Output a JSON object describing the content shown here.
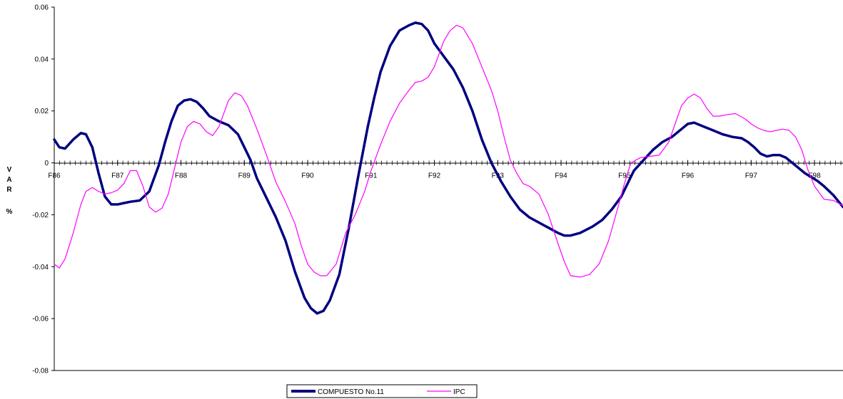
{
  "chart_data": {
    "type": "line",
    "title": "",
    "xlabel": "",
    "ylabel": [
      "V",
      "A",
      "R",
      "",
      "%"
    ],
    "ylim": [
      -0.08,
      0.06
    ],
    "yticks": [
      {
        "value": 0.06,
        "label": "0.06"
      },
      {
        "value": 0.04,
        "label": "0.04"
      },
      {
        "value": 0.02,
        "label": "0.02"
      },
      {
        "value": 0,
        "label": "0"
      },
      {
        "value": -0.02,
        "label": "-0.02"
      },
      {
        "value": -0.04,
        "label": "-0.04"
      },
      {
        "value": -0.06,
        "label": "-0.06"
      },
      {
        "value": -0.08,
        "label": "-0.08"
      }
    ],
    "xlim": [
      1986.0,
      1998.45
    ],
    "xticks": [
      {
        "value": 1986,
        "label": "F86"
      },
      {
        "value": 1987,
        "label": "F87"
      },
      {
        "value": 1988,
        "label": "F88"
      },
      {
        "value": 1989,
        "label": "F89"
      },
      {
        "value": 1990,
        "label": "F90"
      },
      {
        "value": 1991,
        "label": "F91"
      },
      {
        "value": 1992,
        "label": "F92"
      },
      {
        "value": 1993,
        "label": "F93"
      },
      {
        "value": 1994,
        "label": "F94"
      },
      {
        "value": 1995,
        "label": "F95"
      },
      {
        "value": 1996,
        "label": "F96"
      },
      {
        "value": 1997,
        "label": "F97"
      },
      {
        "value": 1998,
        "label": "F98"
      }
    ],
    "grid": false,
    "legend": "bottom-center",
    "series": [
      {
        "name": "COMPUESTO No.11",
        "color": "#000080",
        "width": 3.5,
        "x": [
          1986.0,
          1986.08,
          1986.17,
          1986.3,
          1986.42,
          1986.5,
          1986.6,
          1986.7,
          1986.8,
          1986.9,
          1987.0,
          1987.1,
          1987.2,
          1987.35,
          1987.5,
          1987.65,
          1987.75,
          1987.85,
          1987.95,
          1988.05,
          1988.15,
          1988.25,
          1988.35,
          1988.45,
          1988.6,
          1988.75,
          1988.9,
          1989.0,
          1989.1,
          1989.2,
          1989.35,
          1989.5,
          1989.65,
          1989.8,
          1989.95,
          1990.05,
          1990.15,
          1990.25,
          1990.35,
          1990.5,
          1990.65,
          1990.8,
          1990.95,
          1991.05,
          1991.15,
          1991.3,
          1991.45,
          1991.6,
          1991.7,
          1991.8,
          1991.9,
          1992.0,
          1992.15,
          1992.3,
          1992.45,
          1992.6,
          1992.75,
          1992.9,
          1993.05,
          1993.2,
          1993.35,
          1993.5,
          1993.65,
          1993.8,
          1993.95,
          1994.05,
          1994.15,
          1994.3,
          1994.5,
          1994.65,
          1994.8,
          1994.95,
          1995.05,
          1995.15,
          1995.3,
          1995.45,
          1995.6,
          1995.75,
          1995.9,
          1996.0,
          1996.1,
          1996.25,
          1996.4,
          1996.55,
          1996.7,
          1996.85,
          1996.95,
          1997.05,
          1997.15,
          1997.25,
          1997.35,
          1997.45,
          1997.55,
          1997.7,
          1997.85,
          1997.95,
          1998.05,
          1998.15,
          1998.3,
          1998.45
        ],
        "values": [
          0.009,
          0.006,
          0.0055,
          0.009,
          0.0115,
          0.011,
          0.006,
          -0.004,
          -0.013,
          -0.016,
          -0.016,
          -0.0155,
          -0.015,
          -0.0145,
          -0.011,
          -0.001,
          0.008,
          0.016,
          0.022,
          0.024,
          0.0245,
          0.0235,
          0.021,
          0.018,
          0.016,
          0.0145,
          0.011,
          0.006,
          0.001,
          -0.006,
          -0.0135,
          -0.021,
          -0.03,
          -0.042,
          -0.052,
          -0.056,
          -0.058,
          -0.057,
          -0.053,
          -0.043,
          -0.025,
          -0.005,
          0.014,
          0.025,
          0.035,
          0.045,
          0.051,
          0.053,
          0.054,
          0.0535,
          0.051,
          0.046,
          0.041,
          0.036,
          0.029,
          0.02,
          0.009,
          0.0,
          -0.007,
          -0.013,
          -0.018,
          -0.021,
          -0.023,
          -0.025,
          -0.027,
          -0.028,
          -0.028,
          -0.027,
          -0.0245,
          -0.022,
          -0.018,
          -0.013,
          -0.008,
          -0.003,
          0.001,
          0.005,
          0.008,
          0.01,
          0.013,
          0.015,
          0.0155,
          0.014,
          0.0125,
          0.011,
          0.01,
          0.0095,
          0.008,
          0.006,
          0.0035,
          0.0025,
          0.003,
          0.003,
          0.002,
          -0.001,
          -0.004,
          -0.0055,
          -0.007,
          -0.009,
          -0.0125,
          -0.017
        ]
      },
      {
        "name": "IPC",
        "color": "#ff00ff",
        "width": 1.2,
        "x": [
          1986.0,
          1986.08,
          1986.17,
          1986.3,
          1986.42,
          1986.5,
          1986.6,
          1986.7,
          1986.8,
          1986.9,
          1987.0,
          1987.1,
          1987.2,
          1987.3,
          1987.4,
          1987.5,
          1987.6,
          1987.7,
          1987.8,
          1987.9,
          1988.0,
          1988.1,
          1988.2,
          1988.3,
          1988.4,
          1988.5,
          1988.6,
          1988.75,
          1988.85,
          1988.95,
          1989.05,
          1989.2,
          1989.35,
          1989.5,
          1989.65,
          1989.8,
          1989.9,
          1990.0,
          1990.1,
          1990.2,
          1990.3,
          1990.45,
          1990.6,
          1990.75,
          1990.9,
          1991.0,
          1991.15,
          1991.3,
          1991.45,
          1991.6,
          1991.7,
          1991.8,
          1991.9,
          1992.0,
          1992.15,
          1992.25,
          1992.35,
          1992.45,
          1992.6,
          1992.75,
          1992.9,
          1993.0,
          1993.1,
          1993.2,
          1993.3,
          1993.4,
          1993.5,
          1993.65,
          1993.8,
          1993.95,
          1994.05,
          1994.15,
          1994.3,
          1994.45,
          1994.6,
          1994.75,
          1994.9,
          1995.0,
          1995.1,
          1995.25,
          1995.4,
          1995.55,
          1995.7,
          1995.8,
          1995.9,
          1996.0,
          1996.1,
          1996.2,
          1996.3,
          1996.4,
          1996.5,
          1996.6,
          1996.75,
          1996.9,
          1997.0,
          1997.1,
          1997.2,
          1997.3,
          1997.4,
          1997.5,
          1997.6,
          1997.7,
          1997.8,
          1997.9,
          1998.0,
          1998.15,
          1998.3,
          1998.45
        ],
        "values": [
          -0.039,
          -0.0405,
          -0.037,
          -0.027,
          -0.016,
          -0.011,
          -0.0095,
          -0.011,
          -0.012,
          -0.0115,
          -0.0105,
          -0.008,
          -0.003,
          -0.003,
          -0.009,
          -0.017,
          -0.019,
          -0.0175,
          -0.012,
          -0.002,
          0.008,
          0.014,
          0.016,
          0.015,
          0.012,
          0.0105,
          0.014,
          0.024,
          0.027,
          0.026,
          0.022,
          0.013,
          0.003,
          -0.0075,
          -0.015,
          -0.0235,
          -0.032,
          -0.039,
          -0.042,
          -0.0435,
          -0.0435,
          -0.039,
          -0.027,
          -0.02,
          -0.011,
          -0.003,
          0.007,
          0.016,
          0.023,
          0.028,
          0.031,
          0.0315,
          0.033,
          0.037,
          0.047,
          0.051,
          0.053,
          0.052,
          0.046,
          0.037,
          0.028,
          0.02,
          0.01,
          0.001,
          -0.004,
          -0.008,
          -0.009,
          -0.012,
          -0.02,
          -0.031,
          -0.038,
          -0.0435,
          -0.044,
          -0.043,
          -0.039,
          -0.03,
          -0.017,
          -0.008,
          0.0,
          0.002,
          0.0025,
          0.003,
          0.008,
          0.015,
          0.022,
          0.025,
          0.0265,
          0.025,
          0.021,
          0.018,
          0.018,
          0.0185,
          0.019,
          0.017,
          0.015,
          0.0135,
          0.0125,
          0.012,
          0.0125,
          0.013,
          0.0125,
          0.01,
          0.005,
          -0.003,
          -0.009,
          -0.014,
          -0.0145,
          -0.0165
        ]
      }
    ]
  }
}
